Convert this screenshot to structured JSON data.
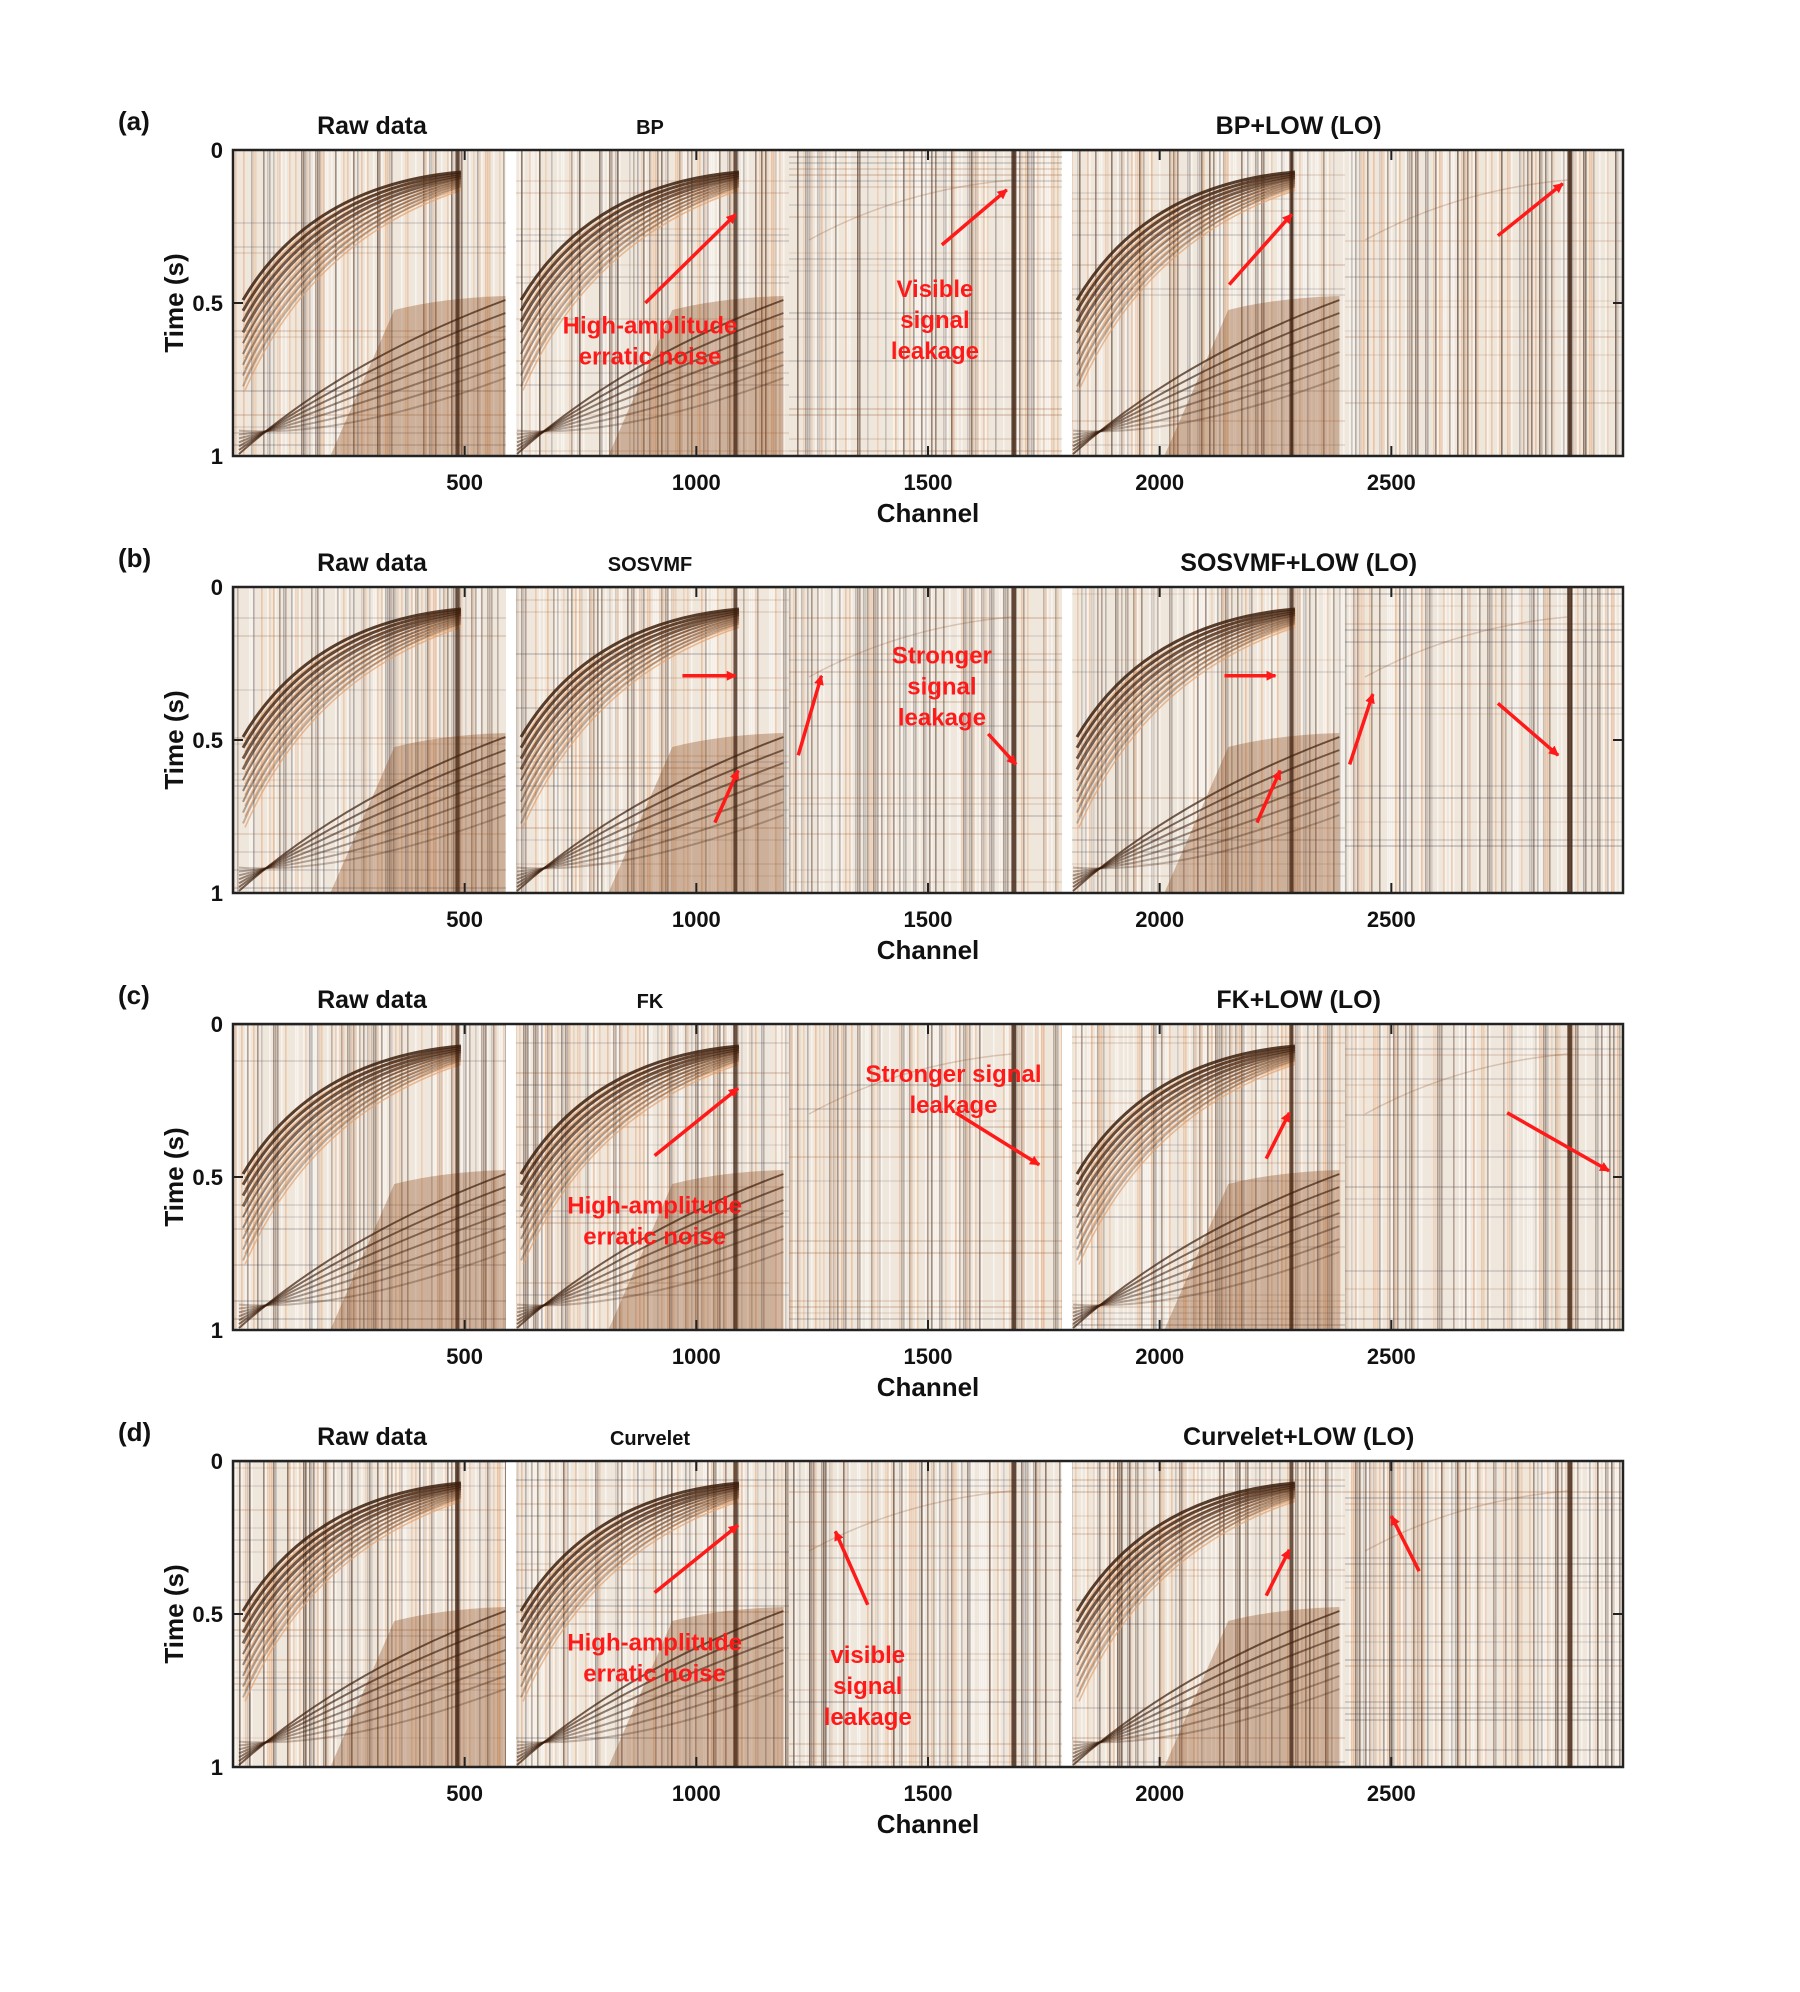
{
  "chart_data": {
    "type": "heatmap",
    "colormap": [
      "#3c1e0c",
      "#8b4a1e",
      "#e6a06a",
      "#ffffff",
      "#2e2e3a"
    ],
    "shared_axes": {
      "xlabel": "Channel",
      "ylabel": "Time (s)",
      "xlim": [
        0,
        3000
      ],
      "ylim": [
        1,
        0
      ],
      "yticks": [
        0,
        0.5,
        1
      ],
      "ytick_labels": [
        "0",
        "0.5",
        "1"
      ],
      "xticks": [
        500,
        1000,
        1500,
        2000,
        2500
      ],
      "xtick_labels": [
        "500",
        "1000",
        "1500",
        "2000",
        "2500"
      ]
    },
    "panels": [
      {
        "label": "(a)",
        "subtitles": [
          "Raw data",
          "BP",
          "BP+LOW (LO)"
        ],
        "annotations": [
          {
            "lines": [
              "High-amplitude",
              "erratic noise"
            ],
            "x": 900,
            "y": 0.6
          },
          {
            "lines": [
              "Visible",
              "signal",
              "leakage"
            ],
            "x": 1515,
            "y": 0.48
          }
        ],
        "arrows": [
          [
            890,
            0.5,
            1085,
            0.21
          ],
          [
            1530,
            0.31,
            1670,
            0.13
          ],
          [
            2150,
            0.44,
            2285,
            0.21
          ],
          [
            2730,
            0.28,
            2870,
            0.11
          ]
        ]
      },
      {
        "label": "(b)",
        "subtitles": [
          "Raw data",
          "SOSVMF",
          "SOSVMF+LOW (LO)"
        ],
        "annotations": [
          {
            "lines": [
              "Stronger",
              "signal",
              "leakage"
            ],
            "x": 1530,
            "y": 0.25
          }
        ],
        "arrows": [
          [
            970,
            0.29,
            1085,
            0.29
          ],
          [
            1040,
            0.77,
            1090,
            0.6
          ],
          [
            1220,
            0.55,
            1270,
            0.29
          ],
          [
            1630,
            0.48,
            1690,
            0.58
          ],
          [
            2140,
            0.29,
            2250,
            0.29
          ],
          [
            2210,
            0.77,
            2260,
            0.6
          ],
          [
            2410,
            0.58,
            2460,
            0.35
          ],
          [
            2730,
            0.38,
            2860,
            0.55
          ]
        ]
      },
      {
        "label": "(c)",
        "subtitles": [
          "Raw data",
          "FK",
          "FK+LOW (LO)"
        ],
        "annotations": [
          {
            "lines": [
              "Stronger signal",
              "leakage"
            ],
            "x": 1555,
            "y": 0.19
          },
          {
            "lines": [
              "High-amplitude",
              "erratic noise"
            ],
            "x": 910,
            "y": 0.62
          }
        ],
        "arrows": [
          [
            910,
            0.43,
            1090,
            0.21
          ],
          [
            1560,
            0.29,
            1740,
            0.46
          ],
          [
            2230,
            0.44,
            2280,
            0.29
          ],
          [
            2750,
            0.29,
            2970,
            0.48
          ]
        ]
      },
      {
        "label": "(d)",
        "subtitles": [
          "Raw data",
          "Curvelet",
          "Curvelet+LOW (LO)"
        ],
        "annotations": [
          {
            "lines": [
              "High-amplitude",
              "erratic noise"
            ],
            "x": 910,
            "y": 0.62
          },
          {
            "lines": [
              "visible",
              "signal",
              "leakage"
            ],
            "x": 1370,
            "y": 0.66
          }
        ],
        "arrows": [
          [
            910,
            0.43,
            1090,
            0.21
          ],
          [
            1370,
            0.47,
            1300,
            0.23
          ],
          [
            2230,
            0.44,
            2280,
            0.29
          ],
          [
            2560,
            0.36,
            2500,
            0.18
          ]
        ]
      }
    ]
  }
}
